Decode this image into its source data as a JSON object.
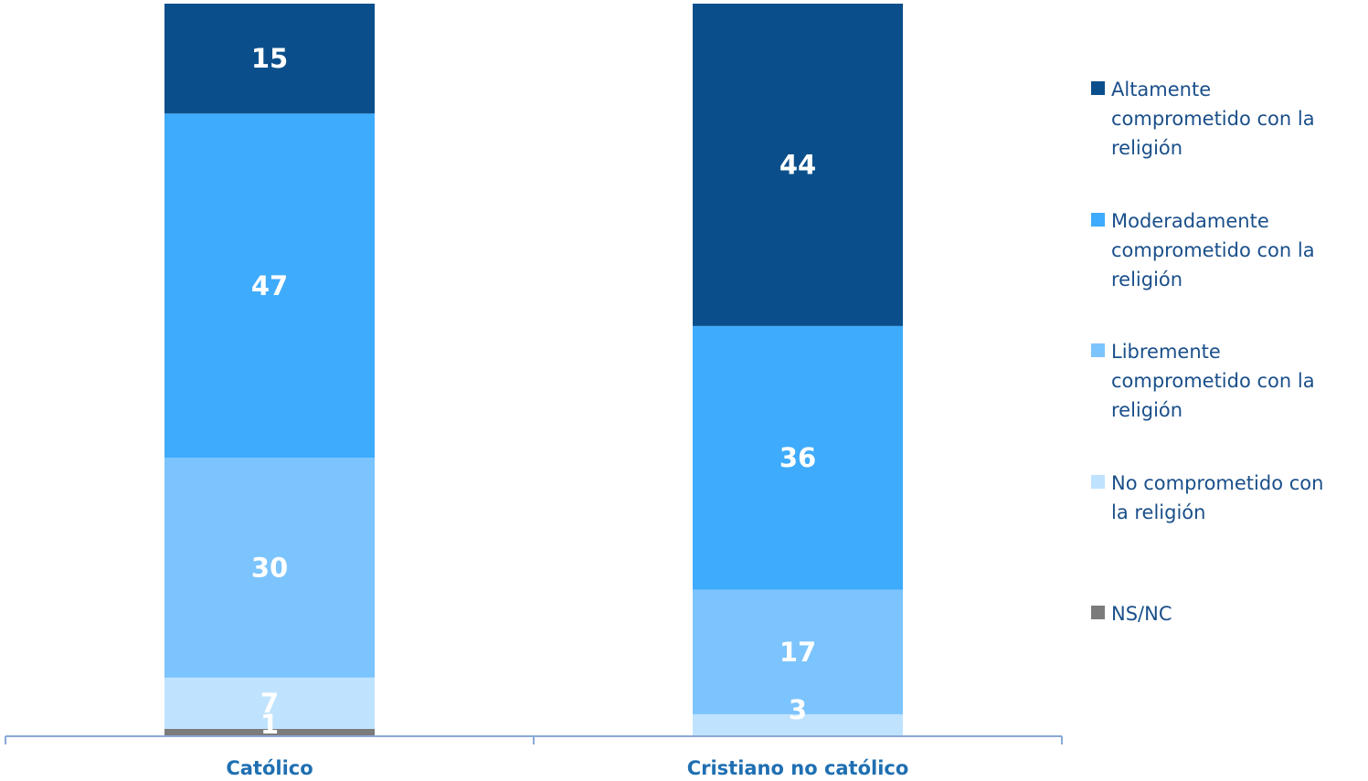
{
  "chart_data": {
    "type": "bar",
    "stacked": true,
    "categories": [
      "Católico",
      "Cristiano no católico"
    ],
    "series": [
      {
        "name": "NS/NC",
        "values": [
          1,
          0
        ],
        "color": "#7b7b7b"
      },
      {
        "name": "No comprometido con la religión",
        "values": [
          7,
          3
        ],
        "color": "#bfe3fe"
      },
      {
        "name": "Libremente comprometido con la religión",
        "values": [
          30,
          17
        ],
        "color": "#7cc4fd"
      },
      {
        "name": "Moderadamente comprometido con la religión",
        "values": [
          47,
          36
        ],
        "color": "#3fabfc"
      },
      {
        "name": "Altamente comprometido con la religión",
        "values": [
          15,
          44
        ],
        "color": "#0a4f8b"
      }
    ],
    "data_labels": true,
    "ylim": [
      0,
      100
    ],
    "axis_color": "#8aa9d6",
    "legend_position": "right",
    "legend_order": [
      "Altamente comprometido con la religión",
      "Moderadamente comprometido con la religión",
      "Libremente comprometido con la religión",
      "No comprometido con la religión",
      "NS/NC"
    ]
  }
}
